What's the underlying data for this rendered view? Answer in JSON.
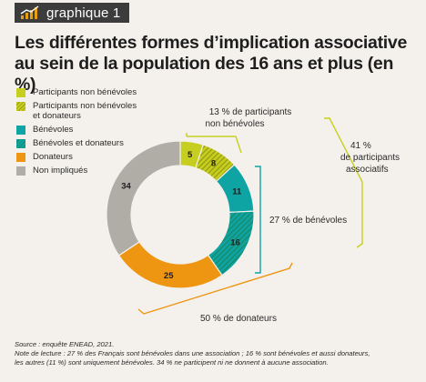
{
  "tag": {
    "label": "graphique 1",
    "icon": "rising-chart-icon"
  },
  "title_line1": "Les différentes formes d’implication associative",
  "title_line2": "au sein de la population des 16 ans et plus (en %)",
  "colors": {
    "lime": "#c6cf1f",
    "teal": "#0fa4a4",
    "orange": "#ee9512",
    "gray": "#b0aca6",
    "hatch_dark_lime": "#9a9c12",
    "hatch_dark_teal": "#168a67"
  },
  "legend": [
    {
      "label1": "Participants non bénévoles",
      "label2": "",
      "swatch": "lime"
    },
    {
      "label1": "Participants non bénévoles",
      "label2": "et donateurs",
      "swatch": "lime-hatched"
    },
    {
      "label1": "Bénévoles",
      "label2": "",
      "swatch": "teal"
    },
    {
      "label1": "Bénévoles et donateurs",
      "label2": "",
      "swatch": "teal-hatched"
    },
    {
      "label1": "Donateurs",
      "label2": "",
      "swatch": "orange"
    },
    {
      "label1": "Non impliqués",
      "label2": "",
      "swatch": "gray"
    }
  ],
  "chart_data": {
    "type": "pie",
    "style": "donut",
    "categories": [
      "Participants non bénévoles",
      "Participants non bénévoles et donateurs",
      "Bénévoles",
      "Bénévoles et donateurs",
      "Donateurs",
      "Non impliqués"
    ],
    "values": [
      5,
      8,
      11,
      16,
      25,
      34
    ],
    "data_labels": [
      "5",
      "8",
      "11",
      "16",
      "25",
      "34"
    ],
    "unit": "%",
    "start": "top",
    "direction": "clockwise",
    "annotations": [
      {
        "line1": "13 % de participants",
        "line2": "non bénévoles",
        "covers": [
          0,
          1
        ]
      },
      {
        "line1": "41 %",
        "line2": "de participants",
        "line3": "associatifs",
        "covers": [
          0,
          1,
          2,
          3
        ]
      },
      {
        "line1": "27 % de bénévoles",
        "covers": [
          2,
          3
        ]
      },
      {
        "line1": "50 % de donateurs",
        "covers": [
          1,
          3,
          4
        ]
      }
    ]
  },
  "notes": {
    "source": "Source : enquête ENEAD, 2021.",
    "reading1": "Note de lecture : 27 % des Français sont bénévoles dans une association ; 16 % sont bénévoles et aussi donateurs,",
    "reading2": "les autres (11 %) sont uniquement bénévoles. 34 % ne participent ni ne donnent à aucune association."
  }
}
